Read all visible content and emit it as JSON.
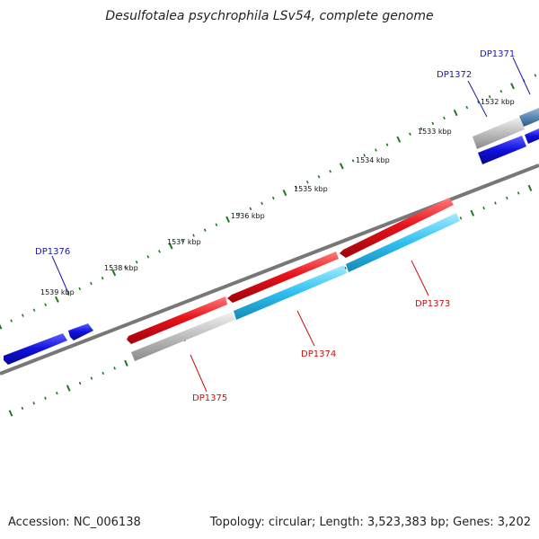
{
  "title": "Desulfotalea psychrophila LSv54, complete genome",
  "footer": {
    "accession": "Accession: NC_006138",
    "summary": "Topology: circular; Length: 3,523,383 bp; Genes: 3,202"
  },
  "tick_labels": [
    "1532 kbp",
    "1533 kbp",
    "1534 kbp",
    "1535 kbp",
    "1536 kbp",
    "1537 kbp",
    "1538 kbp",
    "1539 kbp"
  ],
  "genes": [
    {
      "id": "DP1371",
      "color": "blue"
    },
    {
      "id": "DP1372",
      "color": "blue"
    },
    {
      "id": "DP1373",
      "color": "red"
    },
    {
      "id": "DP1374",
      "color": "red"
    },
    {
      "id": "DP1375",
      "color": "red"
    },
    {
      "id": "DP1376",
      "color": "blue"
    }
  ],
  "colors": {
    "backbone": "#777777",
    "forward_cds": "#e8131b",
    "forward_gene": "#bdbdbd",
    "reverse_gene": "#1010e0",
    "reverse_cds": "#2ec0f0",
    "tick": "#1c7a1c",
    "label_blue": "#1a1aa8",
    "label_red": "#cc1010"
  }
}
